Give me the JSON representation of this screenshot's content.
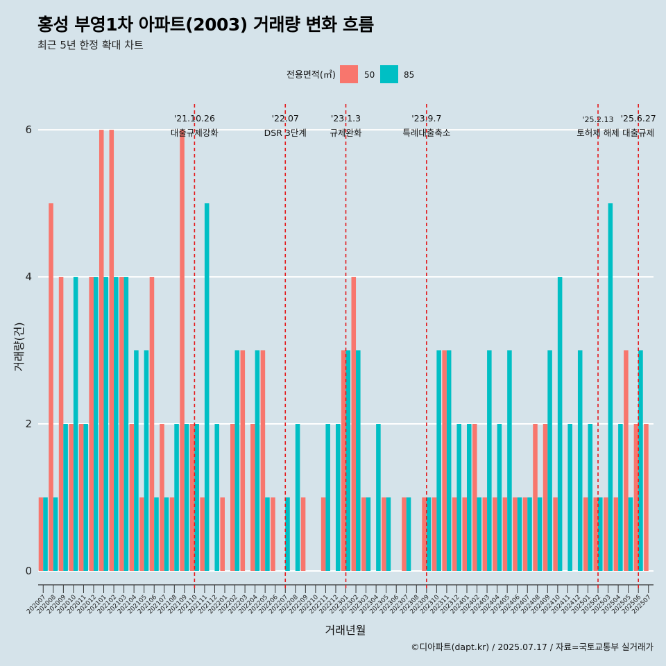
{
  "title": "홍성 부영1차 아파트(2003) 거래량 변화 흐름",
  "subtitle": "최근 5년 한정 확대 차트",
  "caption": "©디아파트(dapt.kr) / 2025.07.17 / 자료=국토교통부 실거래가",
  "colors": {
    "background": "#d5e3ea",
    "s50": "#f8766d",
    "s85": "#00bfc4",
    "event_line": "#e31a1c",
    "grid": "#ffffff"
  },
  "chart_data": {
    "type": "bar",
    "title": "홍성 부영1차 아파트(2003) 거래량 변화 흐름",
    "xlabel": "거래년월",
    "ylabel": "거래량(건)",
    "ylim": [
      0,
      6.35
    ],
    "yticks": [
      0,
      2,
      4,
      6
    ],
    "legend": {
      "title": "전용면적(㎡)",
      "position": "top"
    },
    "categories": [
      "202007",
      "202008",
      "202009",
      "202010",
      "202011",
      "202012",
      "202101",
      "202102",
      "202103",
      "202104",
      "202105",
      "202106",
      "202107",
      "202108",
      "202109",
      "202110",
      "202111",
      "202112",
      "202201",
      "202202",
      "202203",
      "202204",
      "202205",
      "202206",
      "202207",
      "202208",
      "202209",
      "202210",
      "202211",
      "202212",
      "202301",
      "202302",
      "202303",
      "202304",
      "202305",
      "202306",
      "202307",
      "202308",
      "202309",
      "202310",
      "202311",
      "202312",
      "202401",
      "202402",
      "202403",
      "202404",
      "202405",
      "202406",
      "202407",
      "202408",
      "202409",
      "202410",
      "202411",
      "202412",
      "202501",
      "202502",
      "202503",
      "202504",
      "202505",
      "202506",
      "202507"
    ],
    "series": [
      {
        "name": "50",
        "values": [
          1,
          5,
          4,
          2,
          2,
          4,
          6,
          6,
          4,
          2,
          1,
          4,
          2,
          1,
          6,
          2,
          1,
          0,
          1,
          2,
          3,
          2,
          3,
          1,
          0,
          0,
          1,
          0,
          1,
          0,
          3,
          4,
          1,
          0,
          1,
          0,
          1,
          0,
          1,
          1,
          3,
          1,
          1,
          2,
          1,
          1,
          1,
          1,
          1,
          2,
          2,
          1,
          0,
          0,
          1,
          1,
          1,
          1,
          3,
          2,
          2
        ]
      },
      {
        "name": "85",
        "values": [
          1,
          1,
          2,
          4,
          2,
          4,
          4,
          4,
          4,
          3,
          3,
          1,
          1,
          2,
          2,
          2,
          5,
          2,
          0,
          3,
          0,
          3,
          1,
          0,
          1,
          2,
          0,
          0,
          2,
          2,
          3,
          3,
          1,
          2,
          1,
          0,
          1,
          0,
          1,
          3,
          3,
          2,
          2,
          1,
          3,
          2,
          3,
          1,
          1,
          1,
          3,
          4,
          2,
          3,
          2,
          1,
          5,
          2,
          1,
          3,
          0
        ]
      }
    ],
    "events": [
      {
        "label_line1": "'21.10.26",
        "label_line2": "대출규제강화",
        "month": "202110"
      },
      {
        "label_line1": "'22.07",
        "label_line2": "DSR 3단계",
        "month": "202207"
      },
      {
        "label_line1": "'23.1.3",
        "label_line2": "규제완화",
        "month": "202301"
      },
      {
        "label_line1": "'23.9.7",
        "label_line2": "특례대출축소",
        "month": "202309"
      },
      {
        "label_line1": "'25.2.13",
        "label_line2": "토허제 해제",
        "month": "202502"
      },
      {
        "label_line1": "'25.6.27",
        "label_line2": "대출규제",
        "month": "202506"
      }
    ]
  }
}
